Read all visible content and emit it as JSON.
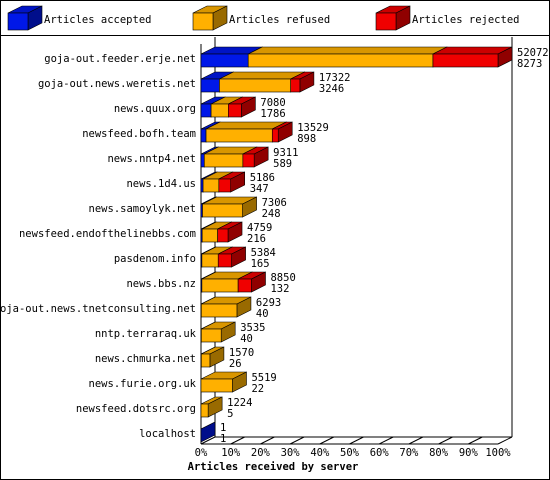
{
  "chart_data": {
    "type": "bar3d",
    "xlabel": "Articles received by server",
    "categories": [
      "goja-out.feeder.erje.net",
      "goja-out.news.weretis.net",
      "news.quux.org",
      "newsfeed.bofh.team",
      "news.nntp4.net",
      "news.1d4.us",
      "news.samoylyk.net",
      "newsfeed.endofthelinebbs.com",
      "pasdenom.info",
      "news.bbs.nz",
      "goja-out.news.tnetconsulting.net",
      "nntp.terraraq.uk",
      "news.chmurka.net",
      "news.furie.org.uk",
      "newsfeed.dotsrc.org",
      "localhost"
    ],
    "series": [
      {
        "name": "Articles accepted",
        "color": "#0018e8",
        "values": [
          15.9,
          6.2,
          3.4,
          1.7,
          1.1,
          0.7,
          0.5,
          0.4,
          0.3,
          0.3,
          0.1,
          0.1,
          0.1,
          0.0,
          0.0,
          0.0
        ]
      },
      {
        "name": "Articles refused",
        "color": "#ffb000",
        "values": [
          62.2,
          24.0,
          5.8,
          22.3,
          13.0,
          5.3,
          13.5,
          5.2,
          5.5,
          12.2,
          12.0,
          6.7,
          2.9,
          10.6,
          2.4,
          0.0
        ]
      },
      {
        "name": "Articles rejected",
        "color": "#f00000",
        "values": [
          21.9,
          3.1,
          4.4,
          2.0,
          3.8,
          4.0,
          0.0,
          3.5,
          4.5,
          4.5,
          0.0,
          0.0,
          0.0,
          0.0,
          0.0,
          0.0
        ]
      }
    ],
    "offered": [
      52072,
      17322,
      7080,
      13529,
      9311,
      5186,
      7306,
      4759,
      5384,
      8850,
      6293,
      3535,
      1570,
      5519,
      1224,
      1
    ],
    "accepted": [
      8273,
      3246,
      1786,
      898,
      589,
      347,
      248,
      216,
      165,
      132,
      40,
      40,
      26,
      22,
      5,
      1
    ],
    "xlim": [
      0,
      100
    ],
    "xticks": [
      {
        "value": 0,
        "label": "0%"
      },
      {
        "value": 10,
        "label": "10%"
      },
      {
        "value": 20,
        "label": "20%"
      },
      {
        "value": 30,
        "label": "30%"
      },
      {
        "value": 40,
        "label": "40%"
      },
      {
        "value": 50,
        "label": "50%"
      },
      {
        "value": 60,
        "label": "60%"
      },
      {
        "value": 70,
        "label": "70%"
      },
      {
        "value": 80,
        "label": "80%"
      },
      {
        "value": 90,
        "label": "90%"
      },
      {
        "value": 100,
        "label": "100%"
      }
    ]
  }
}
